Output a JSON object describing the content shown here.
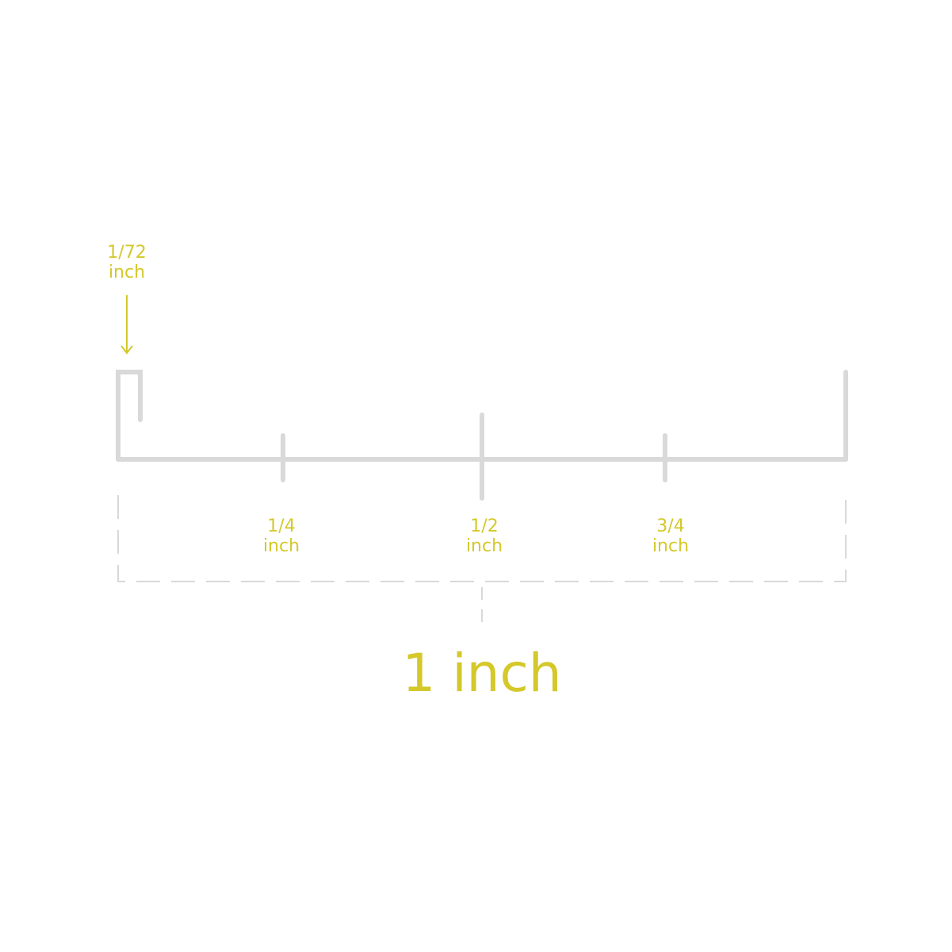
{
  "colors": {
    "accent": "#d4c82a",
    "ruler": "#d9d9d9",
    "dash": "#d9d9d9",
    "background": "#ffffff"
  },
  "diagram": {
    "pointer": {
      "fraction": "1/72",
      "unit": "inch"
    },
    "ticks": [
      {
        "fraction": "1/4",
        "unit": "inch"
      },
      {
        "fraction": "1/2",
        "unit": "inch"
      },
      {
        "fraction": "3/4",
        "unit": "inch"
      }
    ],
    "total": "1 inch"
  }
}
